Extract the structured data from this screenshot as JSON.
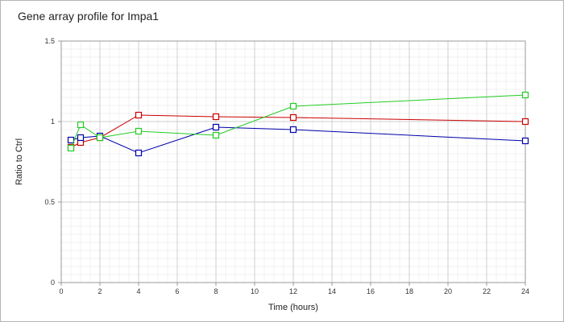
{
  "chart_data": {
    "type": "line",
    "title": "Gene array profile for Impa1",
    "xlabel": "Time (hours)",
    "ylabel": "Ratio to Ctrl",
    "xlim": [
      0,
      24
    ],
    "ylim": [
      0,
      1.5
    ],
    "x_ticks": [
      0,
      2,
      4,
      6,
      8,
      10,
      12,
      14,
      16,
      18,
      20,
      22,
      24
    ],
    "y_ticks": [
      0,
      0.5,
      1,
      1.5
    ],
    "y_tick_labels": [
      "0",
      "0.5",
      "1",
      "1.5"
    ],
    "grid": true,
    "legend": "none",
    "series": [
      {
        "color": "#cc0000",
        "x": [
          0.5,
          1,
          2,
          4,
          8,
          12,
          24
        ],
        "y": [
          0.84,
          0.87,
          0.9,
          1.04,
          1.03,
          1.025,
          1.0
        ]
      },
      {
        "color": "#0000aa",
        "x": [
          0.5,
          1,
          2,
          4,
          8,
          12,
          24
        ],
        "y": [
          0.885,
          0.9,
          0.91,
          0.805,
          0.965,
          0.95,
          0.88
        ]
      },
      {
        "color": "#22cc22",
        "x": [
          0.5,
          1,
          2,
          4,
          8,
          12,
          24
        ],
        "y": [
          0.835,
          0.98,
          0.9,
          0.94,
          0.915,
          1.095,
          1.165
        ]
      }
    ]
  }
}
